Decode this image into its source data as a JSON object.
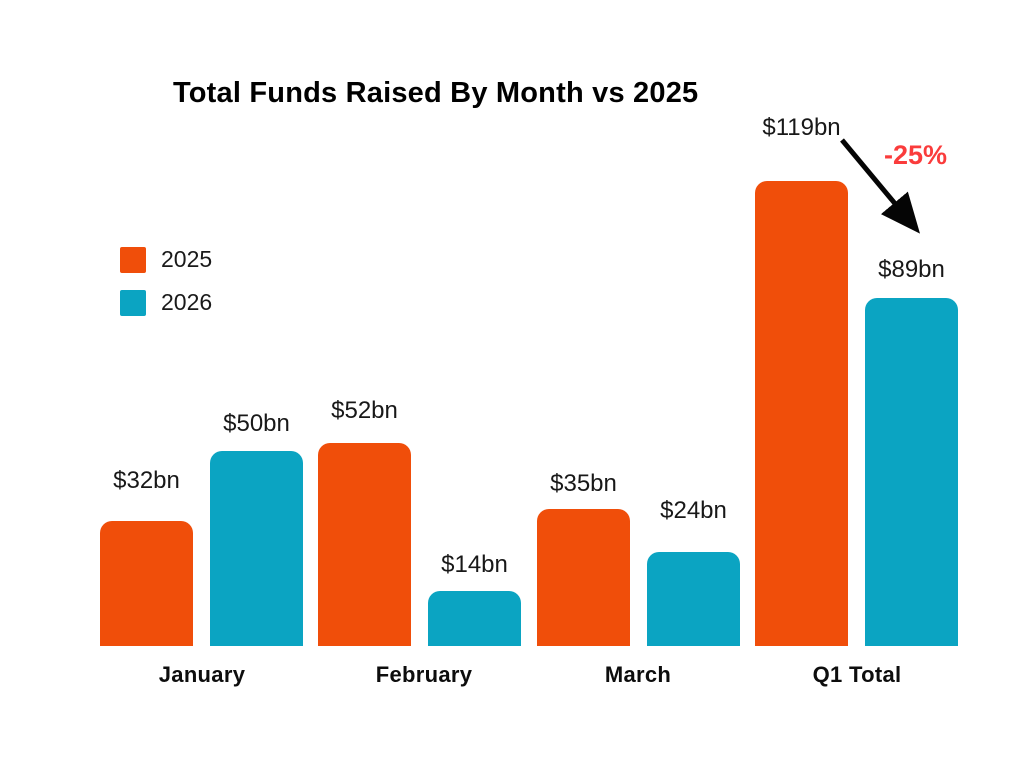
{
  "title": "Total Funds Raised By Month vs 2025",
  "legend": {
    "items": [
      {
        "label": "2025",
        "color": "#F04E0A"
      },
      {
        "label": "2026",
        "color": "#0BA4C2"
      }
    ]
  },
  "annotation": {
    "text": "-25%",
    "color": "#FA3C3C"
  },
  "chart_data": {
    "type": "bar",
    "title": "Total Funds Raised By Month vs 2025",
    "categories": [
      "January",
      "February",
      "March",
      "Q1 Total"
    ],
    "series": [
      {
        "name": "2025",
        "color": "#F04E0A",
        "values": [
          32,
          52,
          35,
          119
        ],
        "value_labels": [
          "$32bn",
          "$52bn",
          "$35bn",
          "$119bn"
        ]
      },
      {
        "name": "2026",
        "color": "#0BA4C2",
        "values": [
          50,
          14,
          24,
          89
        ],
        "value_labels": [
          "$50bn",
          "$14bn",
          "$24bn",
          "$89bn"
        ]
      }
    ],
    "unit": "$bn",
    "ylim": [
      0,
      125
    ],
    "grid": false,
    "axis_lines": false,
    "legend_position": "upper-left",
    "annotations": [
      {
        "text": "-25%",
        "color": "#FA3C3C",
        "type": "decline-arrow",
        "target": "Q1 Total 2026"
      }
    ]
  }
}
